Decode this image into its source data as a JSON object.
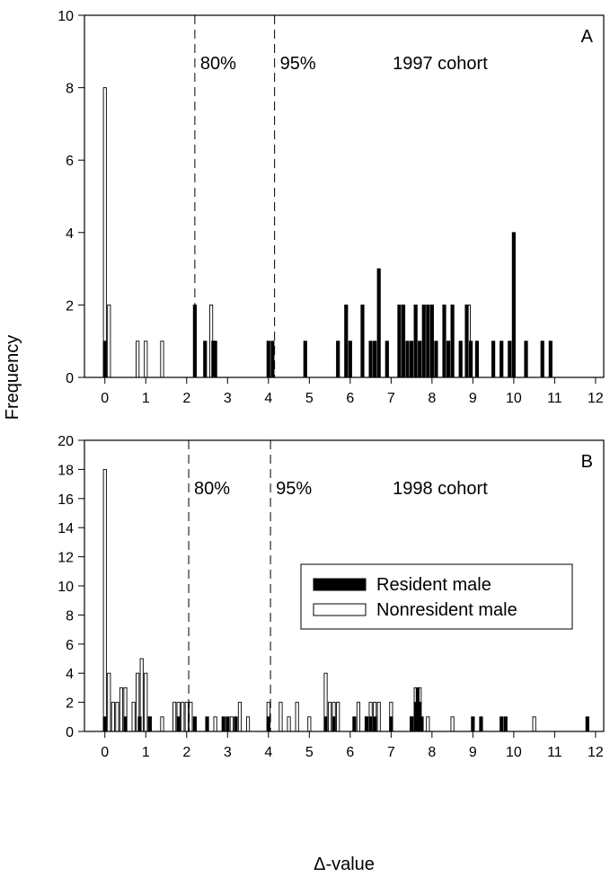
{
  "figure": {
    "ylabel": "Frequency",
    "xlabel": "Δ-value",
    "colors": {
      "resident": "#000000",
      "nonresident": "#ffffff",
      "stroke": "#000000"
    }
  },
  "chart_data": [
    {
      "type": "bar",
      "panel_letter": "A",
      "cohort_label": "1997 cohort",
      "xlim": [
        -0.5,
        12.2
      ],
      "ylim": [
        0,
        10
      ],
      "xticks": [
        0,
        1,
        2,
        3,
        4,
        5,
        6,
        7,
        8,
        9,
        10,
        11,
        12
      ],
      "yticks": [
        0,
        2,
        4,
        6,
        8,
        10
      ],
      "thresholds": [
        {
          "x": 2.2,
          "label": "80%"
        },
        {
          "x": 4.15,
          "label": "95%"
        }
      ],
      "bin_width": 0.1,
      "series": [
        {
          "name": "Resident male",
          "bars": [
            [
              0.0,
              1
            ],
            [
              2.2,
              2
            ],
            [
              2.45,
              1
            ],
            [
              2.65,
              1
            ],
            [
              2.7,
              1
            ],
            [
              4.0,
              1
            ],
            [
              4.1,
              1
            ],
            [
              4.9,
              1
            ],
            [
              5.7,
              1
            ],
            [
              5.9,
              2
            ],
            [
              6.0,
              1
            ],
            [
              6.3,
              2
            ],
            [
              6.5,
              1
            ],
            [
              6.6,
              1
            ],
            [
              6.7,
              3
            ],
            [
              6.9,
              1
            ],
            [
              7.2,
              2
            ],
            [
              7.3,
              2
            ],
            [
              7.4,
              1
            ],
            [
              7.5,
              1
            ],
            [
              7.6,
              2
            ],
            [
              7.7,
              1
            ],
            [
              7.8,
              2
            ],
            [
              7.9,
              2
            ],
            [
              8.0,
              2
            ],
            [
              8.1,
              1
            ],
            [
              8.3,
              2
            ],
            [
              8.4,
              1
            ],
            [
              8.5,
              2
            ],
            [
              8.7,
              1
            ],
            [
              8.85,
              2
            ],
            [
              8.95,
              1
            ],
            [
              9.1,
              1
            ],
            [
              9.5,
              1
            ],
            [
              9.7,
              1
            ],
            [
              9.9,
              1
            ],
            [
              10.0,
              4
            ],
            [
              10.3,
              1
            ],
            [
              10.7,
              1
            ],
            [
              10.9,
              1
            ]
          ]
        },
        {
          "name": "Nonresident male",
          "bars": [
            [
              0.0,
              8
            ],
            [
              0.1,
              2
            ],
            [
              0.8,
              1
            ],
            [
              1.0,
              1
            ],
            [
              1.4,
              1
            ],
            [
              2.6,
              2
            ],
            [
              8.9,
              2
            ]
          ]
        }
      ]
    },
    {
      "type": "bar",
      "panel_letter": "B",
      "cohort_label": "1998 cohort",
      "xlim": [
        -0.5,
        12.2
      ],
      "ylim": [
        0,
        20
      ],
      "xticks": [
        0,
        1,
        2,
        3,
        4,
        5,
        6,
        7,
        8,
        9,
        10,
        11,
        12
      ],
      "yticks": [
        0,
        2,
        4,
        6,
        8,
        10,
        12,
        14,
        16,
        18,
        20
      ],
      "thresholds": [
        {
          "x": 2.05,
          "label": "80%"
        },
        {
          "x": 4.05,
          "label": "95%"
        }
      ],
      "bin_width": 0.1,
      "legend": {
        "placement": "center-right"
      },
      "series": [
        {
          "name": "Resident male",
          "bars": [
            [
              0.0,
              1
            ],
            [
              0.5,
              1
            ],
            [
              0.85,
              1
            ],
            [
              1.1,
              1
            ],
            [
              1.8,
              1
            ],
            [
              2.2,
              1
            ],
            [
              2.5,
              1
            ],
            [
              2.9,
              1
            ],
            [
              3.0,
              1
            ],
            [
              3.2,
              1
            ],
            [
              4.0,
              1
            ],
            [
              5.4,
              1
            ],
            [
              5.6,
              1
            ],
            [
              6.1,
              1
            ],
            [
              6.4,
              1
            ],
            [
              6.5,
              1
            ],
            [
              6.6,
              1
            ],
            [
              7.0,
              1
            ],
            [
              7.5,
              1
            ],
            [
              7.6,
              2
            ],
            [
              7.65,
              3
            ],
            [
              7.7,
              2
            ],
            [
              7.75,
              1
            ],
            [
              9.0,
              1
            ],
            [
              9.2,
              1
            ],
            [
              9.7,
              1
            ],
            [
              9.8,
              1
            ],
            [
              11.8,
              1
            ]
          ]
        },
        {
          "name": "Nonresident male",
          "bars": [
            [
              0.0,
              18
            ],
            [
              0.1,
              4
            ],
            [
              0.2,
              2
            ],
            [
              0.3,
              2
            ],
            [
              0.4,
              3
            ],
            [
              0.5,
              3
            ],
            [
              0.7,
              2
            ],
            [
              0.8,
              4
            ],
            [
              0.9,
              5
            ],
            [
              1.0,
              4
            ],
            [
              1.1,
              1
            ],
            [
              1.4,
              1
            ],
            [
              1.7,
              2
            ],
            [
              1.8,
              2
            ],
            [
              1.9,
              2
            ],
            [
              2.0,
              2
            ],
            [
              2.1,
              2
            ],
            [
              2.7,
              1
            ],
            [
              3.1,
              1
            ],
            [
              3.3,
              2
            ],
            [
              3.5,
              1
            ],
            [
              4.0,
              2
            ],
            [
              4.3,
              2
            ],
            [
              4.5,
              1
            ],
            [
              4.7,
              2
            ],
            [
              5.0,
              1
            ],
            [
              5.4,
              4
            ],
            [
              5.5,
              2
            ],
            [
              5.6,
              2
            ],
            [
              5.7,
              2
            ],
            [
              6.2,
              2
            ],
            [
              6.4,
              1
            ],
            [
              6.5,
              2
            ],
            [
              6.6,
              2
            ],
            [
              6.7,
              2
            ],
            [
              7.0,
              2
            ],
            [
              7.5,
              1
            ],
            [
              7.6,
              3
            ],
            [
              7.7,
              3
            ],
            [
              7.9,
              1
            ],
            [
              8.5,
              1
            ],
            [
              10.5,
              1
            ]
          ]
        }
      ]
    }
  ]
}
